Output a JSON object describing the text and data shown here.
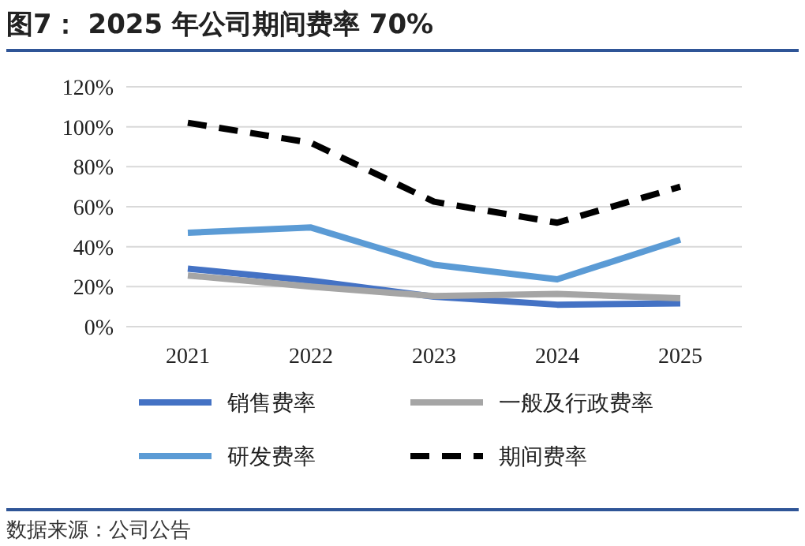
{
  "chart_data": {
    "type": "line",
    "title": "图7： 2025 年公司期间费率 70%",
    "categories": [
      "2021",
      "2022",
      "2023",
      "2024",
      "2025"
    ],
    "series": [
      {
        "name": "销售费率",
        "color": "#4472c4",
        "values": [
          29,
          23,
          15,
          11,
          11.6
        ]
      },
      {
        "name": "一般及行政费率",
        "color": "#a5a5a5",
        "values": [
          25.6,
          20,
          15.3,
          16.4,
          14.2
        ]
      },
      {
        "name": "研发费率",
        "color": "#5b9bd5",
        "values": [
          47,
          49.6,
          31,
          23.7,
          43.5
        ]
      },
      {
        "name": "期间费率",
        "color": "#000000",
        "values": [
          102,
          92,
          62.5,
          52,
          70
        ],
        "line_style": "dashed"
      }
    ],
    "ylim": [
      0,
      120
    ],
    "yticks": [
      {
        "value": 0,
        "label": "0%"
      },
      {
        "value": 20,
        "label": "20%"
      },
      {
        "value": 40,
        "label": "40%"
      },
      {
        "value": 60,
        "label": "60%"
      },
      {
        "value": 80,
        "label": "80%"
      },
      {
        "value": 100,
        "label": "100%"
      },
      {
        "value": 120,
        "label": "120%"
      }
    ],
    "grid": "y",
    "legend": "bottom",
    "marker": "none",
    "annotations": [
      "数据来源：公司公告"
    ]
  }
}
